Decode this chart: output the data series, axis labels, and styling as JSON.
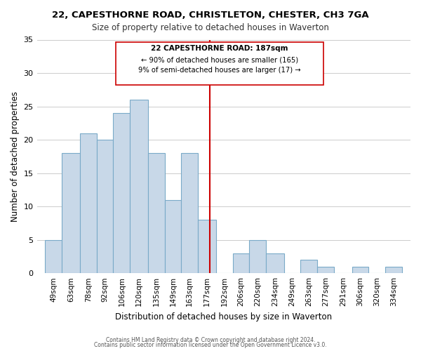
{
  "title": "22, CAPESTHORNE ROAD, CHRISTLETON, CHESTER, CH3 7GA",
  "subtitle": "Size of property relative to detached houses in Waverton",
  "xlabel": "Distribution of detached houses by size in Waverton",
  "ylabel": "Number of detached properties",
  "bar_labels": [
    "49sqm",
    "63sqm",
    "78sqm",
    "92sqm",
    "106sqm",
    "120sqm",
    "135sqm",
    "149sqm",
    "163sqm",
    "177sqm",
    "192sqm",
    "206sqm",
    "220sqm",
    "234sqm",
    "249sqm",
    "263sqm",
    "277sqm",
    "291sqm",
    "306sqm",
    "320sqm",
    "334sqm"
  ],
  "bar_values": [
    5,
    18,
    21,
    20,
    24,
    26,
    18,
    11,
    18,
    8,
    0,
    3,
    5,
    3,
    0,
    2,
    1,
    0,
    1,
    0,
    1
  ],
  "bar_edges": [
    49,
    63,
    78,
    92,
    106,
    120,
    135,
    149,
    163,
    177,
    192,
    206,
    220,
    234,
    249,
    263,
    277,
    291,
    306,
    320,
    334,
    348
  ],
  "bar_color": "#c8d8e8",
  "bar_edge_color": "#7aaac8",
  "vline_x": 187,
  "vline_color": "#cc0000",
  "ylim": [
    0,
    35
  ],
  "yticks": [
    0,
    5,
    10,
    15,
    20,
    25,
    30,
    35
  ],
  "annotation_title": "22 CAPESTHORNE ROAD: 187sqm",
  "annotation_line1": "← 90% of detached houses are smaller (165)",
  "annotation_line2": "9% of semi-detached houses are larger (17) →",
  "footer1": "Contains HM Land Registry data © Crown copyright and database right 2024.",
  "footer2": "Contains public sector information licensed under the Open Government Licence v3.0."
}
